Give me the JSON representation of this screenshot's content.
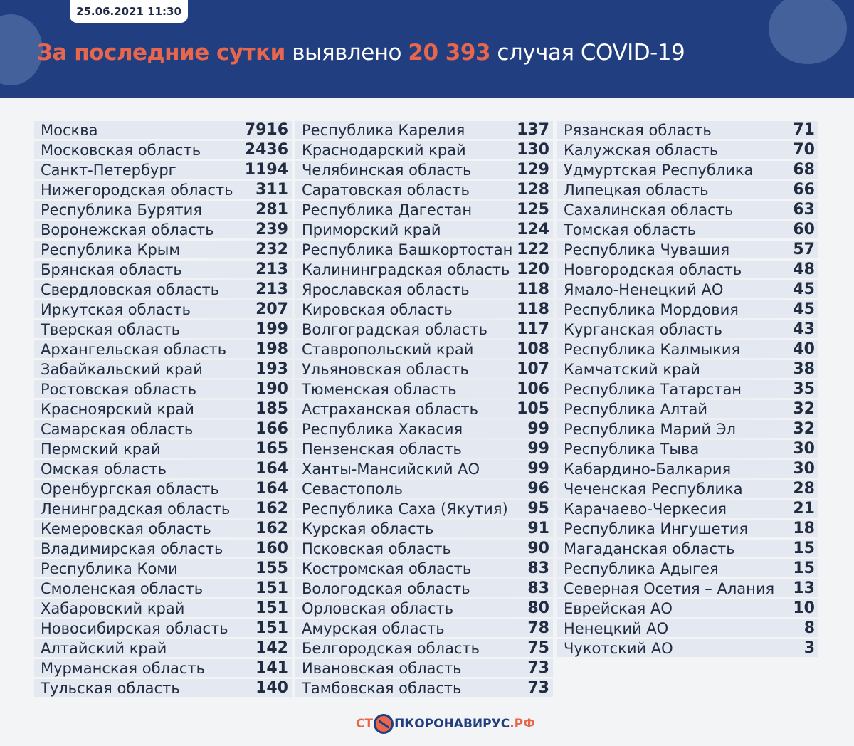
{
  "header": {
    "date": "25.06.2021 11:30",
    "title_part1": "За последние сутки",
    "title_part2": " выявлено ",
    "title_number": "20 393",
    "title_part3": " случая COVID-19"
  },
  "colors": {
    "header_bg": "#213f80",
    "accent": "#e8664c",
    "row_bg": "#e4e9f1"
  },
  "columns": [
    [
      [
        "Москва",
        "7916"
      ],
      [
        "Московская область",
        "2436"
      ],
      [
        "Санкт-Петербург",
        "1194"
      ],
      [
        "Нижегородская область",
        "311"
      ],
      [
        "Республика Бурятия",
        "281"
      ],
      [
        "Воронежская область",
        "239"
      ],
      [
        "Республика Крым",
        "232"
      ],
      [
        "Брянская область",
        "213"
      ],
      [
        "Свердловская область",
        "213"
      ],
      [
        "Иркутская область",
        "207"
      ],
      [
        "Тверская область",
        "199"
      ],
      [
        "Архангельская область",
        "198"
      ],
      [
        "Забайкальский край",
        "193"
      ],
      [
        "Ростовская область",
        "190"
      ],
      [
        "Красноярский край",
        "185"
      ],
      [
        "Самарская область",
        "166"
      ],
      [
        "Пермский край",
        "165"
      ],
      [
        "Омская область",
        "164"
      ],
      [
        "Оренбургская область",
        "164"
      ],
      [
        "Ленинградская область",
        "162"
      ],
      [
        "Кемеровская область",
        "162"
      ],
      [
        "Владимирская область",
        "160"
      ],
      [
        "Республика Коми",
        "155"
      ],
      [
        "Смоленская область",
        "151"
      ],
      [
        "Хабаровский край",
        "151"
      ],
      [
        "Новосибирская область",
        "151"
      ],
      [
        "Алтайский край",
        "142"
      ],
      [
        "Мурманская область",
        "141"
      ],
      [
        "Тульская область",
        "140"
      ]
    ],
    [
      [
        "Республика Карелия",
        "137"
      ],
      [
        "Краснодарский край",
        "130"
      ],
      [
        "Челябинская область",
        "129"
      ],
      [
        "Саратовская область",
        "128"
      ],
      [
        "Республика Дагестан",
        "125"
      ],
      [
        "Приморский край",
        "124"
      ],
      [
        "Республика Башкортостан",
        "122"
      ],
      [
        "Калининградская область",
        "120"
      ],
      [
        "Ярославская область",
        "118"
      ],
      [
        "Кировская область",
        "118"
      ],
      [
        "Волгоградская область",
        "117"
      ],
      [
        "Ставропольский край",
        "108"
      ],
      [
        "Ульяновская область",
        "107"
      ],
      [
        "Тюменская область",
        "106"
      ],
      [
        "Астраханская область",
        "105"
      ],
      [
        "Республика Хакасия",
        "99"
      ],
      [
        "Пензенская область",
        "99"
      ],
      [
        "Ханты-Мансийский АО",
        "99"
      ],
      [
        "Севастополь",
        "96"
      ],
      [
        "Республика Саха (Якутия)",
        "95"
      ],
      [
        "Курская область",
        "91"
      ],
      [
        "Псковская область",
        "90"
      ],
      [
        "Костромская область",
        "83"
      ],
      [
        "Вологодская область",
        "83"
      ],
      [
        "Орловская область",
        "80"
      ],
      [
        "Амурская область",
        "78"
      ],
      [
        "Белгородская область",
        "75"
      ],
      [
        "Ивановская область",
        "73"
      ],
      [
        "Тамбовская область",
        "73"
      ]
    ],
    [
      [
        "Рязанская область",
        "71"
      ],
      [
        "Калужская область",
        "70"
      ],
      [
        "Удмуртская Республика",
        "68"
      ],
      [
        "Липецкая область",
        "66"
      ],
      [
        "Сахалинская область",
        "63"
      ],
      [
        "Томская область",
        "60"
      ],
      [
        "Республика Чувашия",
        "57"
      ],
      [
        "Новгородская область",
        "48"
      ],
      [
        "Ямало-Ненецкий АО",
        "45"
      ],
      [
        "Республика Мордовия",
        "45"
      ],
      [
        "Курганская область",
        "43"
      ],
      [
        "Республика Калмыкия",
        "40"
      ],
      [
        "Камчатский край",
        "38"
      ],
      [
        "Республика Татарстан",
        "35"
      ],
      [
        "Республика Алтай",
        "32"
      ],
      [
        "Республика Марий Эл",
        "32"
      ],
      [
        "Республика Тыва",
        "30"
      ],
      [
        "Кабардино-Балкария",
        "30"
      ],
      [
        "Чеченская Республика",
        "28"
      ],
      [
        "Карачаево-Черкесия",
        "21"
      ],
      [
        "Республика Ингушетия",
        "18"
      ],
      [
        "Магаданская область",
        "15"
      ],
      [
        "Республика Адыгея",
        "15"
      ],
      [
        "Северная Осетия – Алания",
        "13"
      ],
      [
        "Еврейская АО",
        "10"
      ],
      [
        "Ненецкий АО",
        "8"
      ],
      [
        "Чукотский АО",
        "3"
      ]
    ]
  ],
  "footer": {
    "logo_part1": "СТ",
    "logo_part2": "ПКОРОНАВИРУС",
    "logo_part3": ".РФ"
  }
}
